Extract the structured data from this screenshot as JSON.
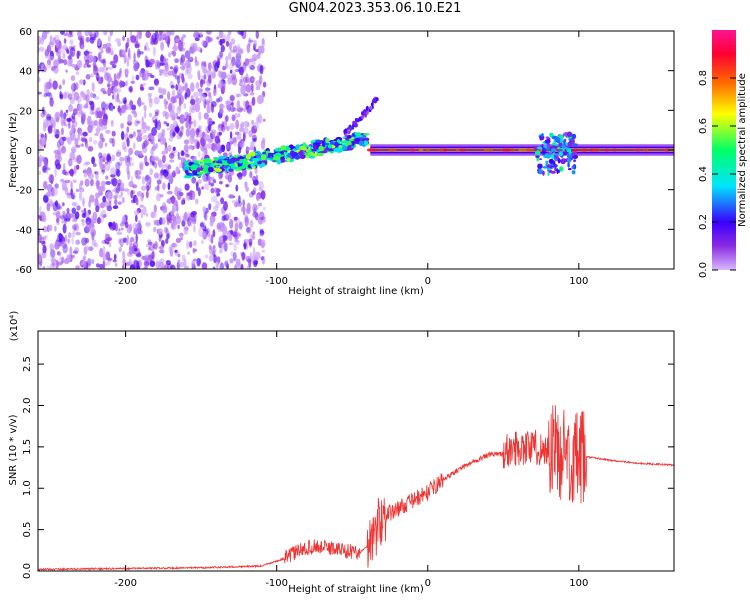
{
  "title": "GN04.2023.353.06.10.E21",
  "chart_data": [
    {
      "type": "heatmap",
      "xlabel": "Height of straight line (km)",
      "ylabel": "Frequency (Hz)",
      "xlim": [
        -258,
        163
      ],
      "ylim": [
        -60,
        60
      ],
      "x_ticks": [
        -200,
        -100,
        0,
        100
      ],
      "y_ticks": [
        -60,
        -40,
        -20,
        0,
        20,
        40,
        60
      ],
      "colorbar": {
        "label": "Normalized spectral amplitude",
        "range": [
          0.0,
          1.0
        ],
        "ticks": [
          0.0,
          0.2,
          0.4,
          0.6,
          0.8
        ],
        "colors": [
          "#d8b8ff",
          "#8a2be2",
          "#3a00ff",
          "#00e5ff",
          "#00ff66",
          "#ffff00",
          "#ff6a00",
          "#ff0033",
          "#ff1493"
        ]
      },
      "features": [
        {
          "name": "noise",
          "x_range": [
            -258,
            -108
          ],
          "f_range": [
            -60,
            60
          ],
          "amplitude": 0.1
        },
        {
          "name": "rising-band",
          "x": [
            -160,
            -120,
            -80,
            -50,
            -40
          ],
          "f": [
            -10,
            -6,
            0,
            4,
            6
          ],
          "amplitude": 0.45
        },
        {
          "name": "branch",
          "x": [
            -55,
            -42,
            -33
          ],
          "f": [
            8,
            18,
            26
          ],
          "amplitude": 0.2
        },
        {
          "name": "carrier",
          "x_range": [
            -38,
            163
          ],
          "f": 0,
          "amplitude": 0.9
        },
        {
          "name": "burst",
          "x_range": [
            72,
            98
          ],
          "f_range": [
            -12,
            8
          ],
          "amplitude": 0.4
        }
      ]
    },
    {
      "type": "line",
      "xlabel": "Height of straight line (km)",
      "ylabel": "SNR (10 * v/v)",
      "y_multiplier": "(x10⁴)",
      "xlim": [
        -258,
        163
      ],
      "ylim": [
        0.0,
        2.9
      ],
      "x_ticks": [
        -200,
        -100,
        0,
        100
      ],
      "y_ticks": [
        0.0,
        0.5,
        1.0,
        1.5,
        2.0,
        2.5
      ],
      "color": "#ee3333",
      "x": [
        -258,
        -200,
        -150,
        -110,
        -95,
        -85,
        -75,
        -65,
        -55,
        -45,
        -40,
        -30,
        -20,
        -10,
        0,
        10,
        20,
        30,
        40,
        50,
        60,
        70,
        80,
        90,
        100,
        105,
        120,
        140,
        163
      ],
      "y": [
        0.02,
        0.03,
        0.04,
        0.06,
        0.15,
        0.25,
        0.3,
        0.28,
        0.25,
        0.22,
        0.3,
        0.65,
        0.75,
        0.85,
        0.95,
        1.1,
        1.22,
        1.32,
        1.4,
        1.42,
        1.5,
        1.5,
        1.45,
        1.45,
        1.3,
        1.38,
        1.34,
        1.3,
        1.28
      ]
    }
  ]
}
